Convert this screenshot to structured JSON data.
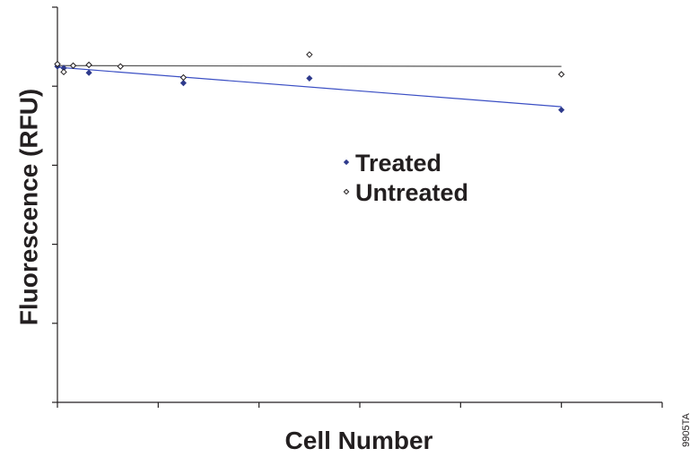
{
  "chart_data": {
    "type": "scatter",
    "title": "",
    "xlabel": "Cell Number",
    "ylabel": "Fluorescence (RFU)",
    "xlim": [
      0,
      60
    ],
    "ylim": [
      0,
      5
    ],
    "x_ticks": [
      0,
      10,
      20,
      30,
      40,
      50,
      60
    ],
    "y_ticks": [
      0,
      1,
      2,
      3,
      4,
      5
    ],
    "tick_labels_shown": false,
    "grid": false,
    "legend_position": "center-right",
    "series": [
      {
        "name": "Treated",
        "marker": "filled-diamond",
        "color": "#2e3a8c",
        "trendline_color": "#3b4fc4",
        "x": [
          0,
          0.625,
          3.125,
          12.5,
          25,
          50
        ],
        "y": [
          4.25,
          4.23,
          4.17,
          4.04,
          4.1,
          3.7
        ],
        "trendline": {
          "x": [
            0,
            50
          ],
          "y": [
            4.24,
            3.74
          ]
        }
      },
      {
        "name": "Untreated",
        "marker": "open-diamond",
        "color": "#231f20",
        "trendline_color": "#555555",
        "x": [
          0,
          0.625,
          1.5625,
          3.125,
          6.25,
          12.5,
          25,
          50
        ],
        "y": [
          4.28,
          4.18,
          4.26,
          4.27,
          4.25,
          4.11,
          4.4,
          4.15
        ],
        "trendline": {
          "x": [
            0,
            50
          ],
          "y": [
            4.26,
            4.25
          ]
        }
      }
    ],
    "figure_id": "9905TA"
  }
}
